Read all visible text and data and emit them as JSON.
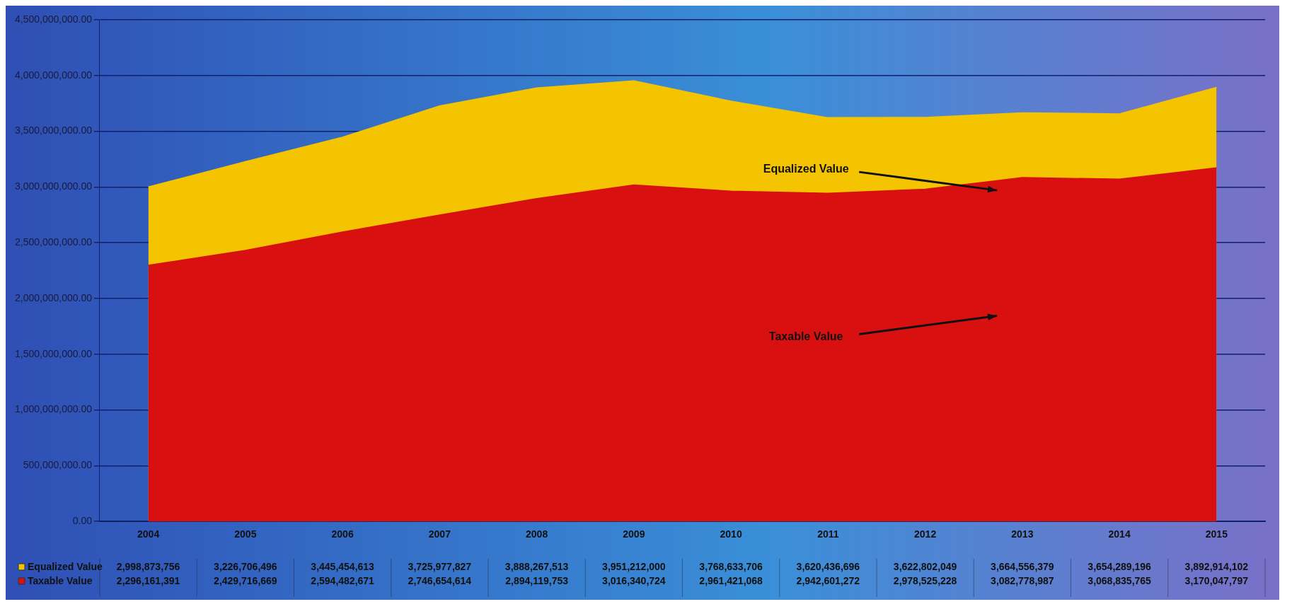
{
  "chart_data": {
    "type": "area",
    "categories": [
      "2004",
      "2005",
      "2006",
      "2007",
      "2008",
      "2009",
      "2010",
      "2011",
      "2012",
      "2013",
      "2014",
      "2015"
    ],
    "series": [
      {
        "name": "Equalized Value",
        "color": "#f5c400",
        "value_labels": [
          "2,998,873,756",
          "3,226,706,496",
          "3,445,454,613",
          "3,725,977,827",
          "3,888,267,513",
          "3,951,212,000",
          "3,768,633,706",
          "3,620,436,696",
          "3,622,802,049",
          "3,664,556,379",
          "3,654,289,196",
          "3,892,914,102"
        ],
        "values": [
          2998873756,
          3226706496,
          3445454613,
          3725977827,
          3888267513,
          3951212000,
          3768633706,
          3620436696,
          3622802049,
          3664556379,
          3654289196,
          3892914102
        ]
      },
      {
        "name": "Taxable Value",
        "color": "#d81010",
        "value_labels": [
          "2,296,161,391",
          "2,429,716,669",
          "2,594,482,671",
          "2,746,654,614",
          "2,894,119,753",
          "3,016,340,724",
          "2,961,421,068",
          "2,942,601,272",
          "2,978,525,228",
          "3,082,778,987",
          "3,068,835,765",
          "3,170,047,797"
        ],
        "values": [
          2296161391,
          2429716669,
          2594482671,
          2746654614,
          2894119753,
          3016340724,
          2961421068,
          2942601272,
          2978525228,
          3082778987,
          3068835765,
          3170047797
        ]
      }
    ],
    "ylim": [
      0,
      4500000000
    ],
    "yticks": [
      {
        "value": 0,
        "label": "0.00"
      },
      {
        "value": 500000000,
        "label": "500,000,000.00"
      },
      {
        "value": 1000000000,
        "label": "1,000,000,000.00"
      },
      {
        "value": 1500000000,
        "label": "1,500,000,000.00"
      },
      {
        "value": 2000000000,
        "label": "2,000,000,000.00"
      },
      {
        "value": 2500000000,
        "label": "2,500,000,000.00"
      },
      {
        "value": 3000000000,
        "label": "3,000,000,000.00"
      },
      {
        "value": 3500000000,
        "label": "3,500,000,000.00"
      },
      {
        "value": 4000000000,
        "label": "4,000,000,000.00"
      },
      {
        "value": 4500000000,
        "label": "4,500,000,000.00"
      }
    ],
    "grid": "y",
    "legend": "bottom",
    "annotations": [
      "Equalized Value",
      "Taxable Value"
    ]
  }
}
